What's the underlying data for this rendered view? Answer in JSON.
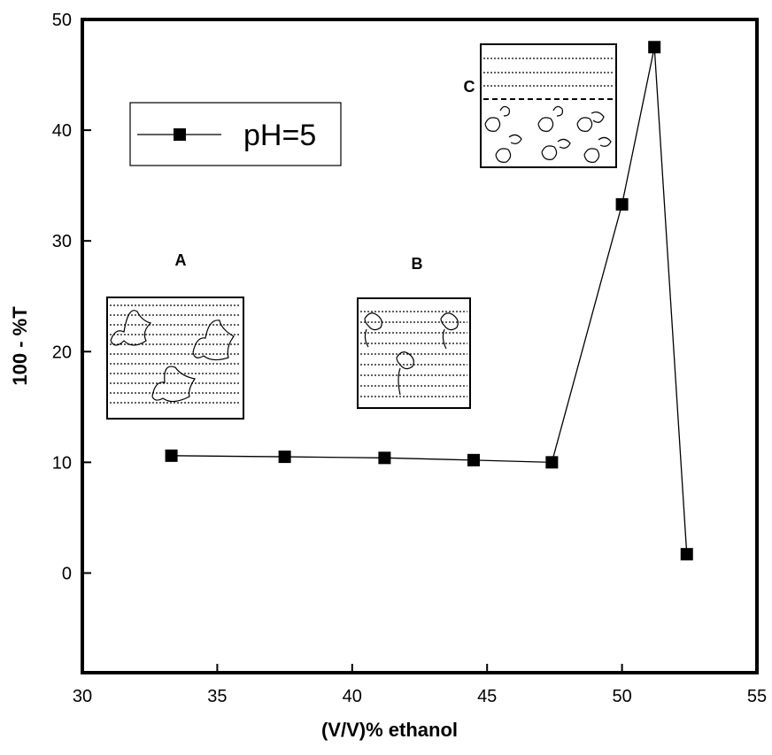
{
  "chart_data": {
    "type": "line",
    "x_label": "(V/V)% ethanol",
    "y_label": "100 - %T",
    "x": [
      33.3,
      37.5,
      41.2,
      44.5,
      47.4,
      50.0,
      51.2,
      52.4
    ],
    "series": [
      {
        "name": "pH=5",
        "color": "#000000",
        "values": [
          10.6,
          10.5,
          10.4,
          10.2,
          10.0,
          33.3,
          47.5,
          1.7
        ]
      }
    ],
    "xlim": [
      30,
      55
    ],
    "xticks": [
      30,
      35,
      40,
      45,
      50,
      55
    ],
    "ylim": [
      -9,
      50
    ],
    "yticks": [
      0,
      10,
      20,
      30,
      40,
      50
    ],
    "legend": "upper left",
    "annotations": [
      "A",
      "B",
      "C"
    ]
  }
}
